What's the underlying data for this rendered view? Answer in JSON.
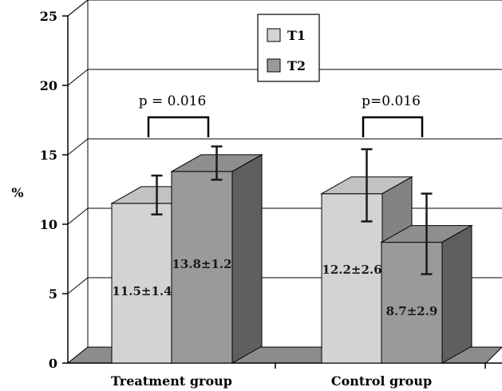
{
  "chart_data": {
    "type": "bar",
    "title": "",
    "xlabel": "",
    "ylabel": "%",
    "ylim": [
      0,
      25
    ],
    "yticks": [
      0,
      5,
      10,
      15,
      20,
      25
    ],
    "grid": true,
    "legend_position": "top-center",
    "categories": [
      "Treatment group",
      "Control group"
    ],
    "series": [
      {
        "name": "T1",
        "color": "#d3d3d3",
        "values": [
          11.5,
          12.2
        ],
        "errors": [
          1.4,
          2.6
        ],
        "labels": [
          "11.5±1.4",
          "12.2±2.6"
        ]
      },
      {
        "name": "T2",
        "color": "#9a9a9a",
        "values": [
          13.8,
          8.7
        ],
        "errors": [
          1.2,
          2.9
        ],
        "labels": [
          "13.8±1.2",
          "8.7±2.9"
        ]
      }
    ],
    "annotations": [
      {
        "text": "p = 0.016",
        "category": 0
      },
      {
        "text": "p=0.016",
        "category": 1
      }
    ]
  }
}
